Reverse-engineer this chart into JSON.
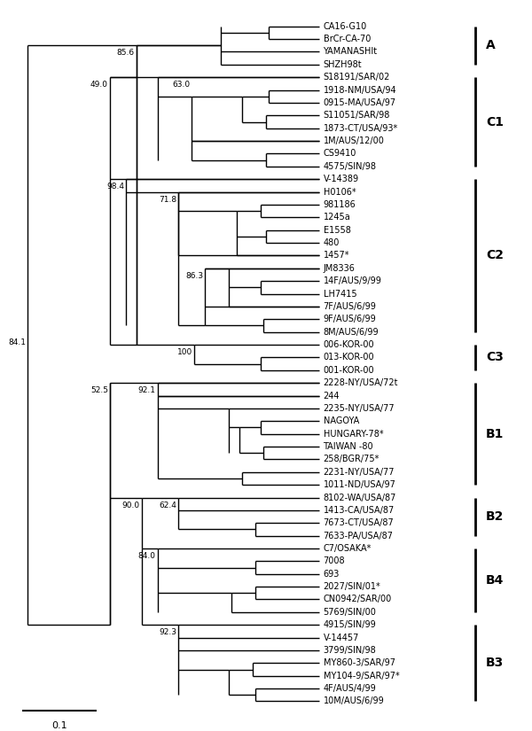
{
  "taxa": [
    "CA16-G10",
    "BrCr-CA-70",
    "YAMANASHIt",
    "SHZH98t",
    "S18191/SAR/02",
    "1918-NM/USA/94",
    "0915-MA/USA/97",
    "S11051/SAR/98",
    "1873-CT/USA/93*",
    "1M/AUS/12/00",
    "CS9410",
    "4575/SIN/98",
    "V-14389",
    "H0106*",
    "981186",
    "1245a",
    "E1558",
    "480",
    "1457*",
    "JM8336",
    "14F/AUS/9/99",
    "LH7415",
    "7F/AUS/6/99",
    "9F/AUS/6/99",
    "8M/AUS/6/99",
    "006-KOR-00",
    "013-KOR-00",
    "001-KOR-00",
    "2228-NY/USA/72t",
    "244",
    "2235-NY/USA/77",
    "NAGOYA",
    "HUNGARY-78*",
    "TAIWAN -80",
    "258/BGR/75*",
    "2231-NY/USA/77",
    "1011-ND/USA/97",
    "8102-WA/USA/87",
    "1413-CA/USA/87",
    "7673-CT/USA/87",
    "7633-PA/USA/87",
    "C7/OSAKA*",
    "7008",
    "693",
    "2027/SIN/01*",
    "CN0942/SAR/00",
    "5769/SIN/00",
    "4915/SIN/99",
    "V-14457",
    "3799/SIN/98",
    "MY860-3/SAR/97",
    "MY104-9/SAR/97*",
    "4F/AUS/4/99",
    "10M/AUS/6/99"
  ],
  "clade_brackets": [
    {
      "name": "A",
      "start": 0,
      "end": 3
    },
    {
      "name": "C1",
      "start": 4,
      "end": 11
    },
    {
      "name": "C2",
      "start": 12,
      "end": 24
    },
    {
      "name": "C3",
      "start": 25,
      "end": 27
    },
    {
      "name": "B1",
      "start": 28,
      "end": 36
    },
    {
      "name": "B2",
      "start": 37,
      "end": 40
    },
    {
      "name": "B4",
      "start": 41,
      "end": 46
    },
    {
      "name": "B3",
      "start": 47,
      "end": 53
    }
  ],
  "scale_bar": "0.1",
  "bg_color": "#ffffff",
  "line_color": "#000000",
  "fontsize_taxa": 7.0,
  "fontsize_bootstrap": 6.5,
  "fontsize_clade": 10.0
}
